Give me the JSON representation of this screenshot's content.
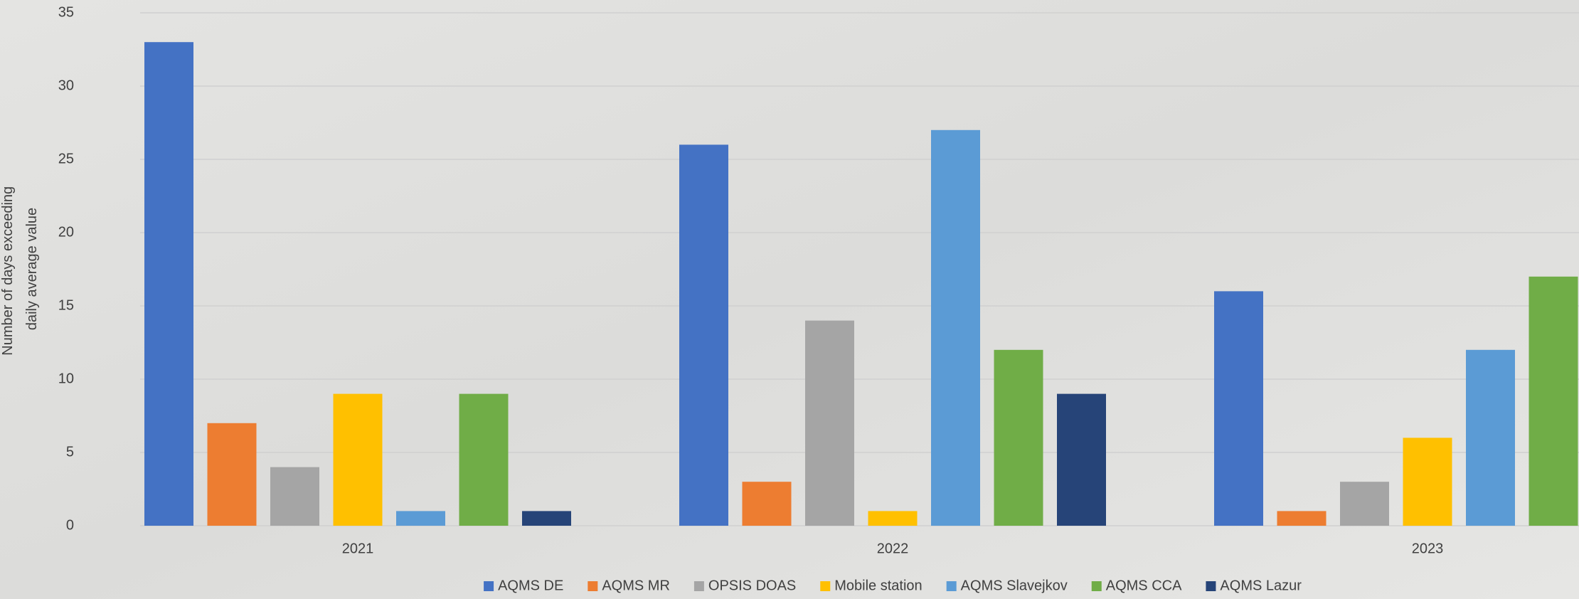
{
  "chart_data": {
    "type": "bar",
    "ylabel": [
      "Number of days exceeding",
      "daily average value"
    ],
    "categories": [
      "2021",
      "2022",
      "2023"
    ],
    "series": [
      {
        "name": "AQMS DE",
        "color": "#4472c4",
        "values": [
          33,
          26,
          16
        ]
      },
      {
        "name": "AQMS MR",
        "color": "#ed7d31",
        "values": [
          7,
          3,
          1
        ]
      },
      {
        "name": "OPSIS DOAS",
        "color": "#a5a5a5",
        "values": [
          4,
          14,
          3
        ]
      },
      {
        "name": "Mobile station",
        "color": "#ffc000",
        "values": [
          9,
          1,
          6
        ]
      },
      {
        "name": "AQMS Slavejkov",
        "color": "#5b9bd5",
        "values": [
          1,
          27,
          12
        ]
      },
      {
        "name": "AQMS CCA",
        "color": "#70ad47",
        "values": [
          9,
          12,
          17
        ]
      },
      {
        "name": "AQMS Lazur",
        "color": "#264478",
        "values": [
          1,
          9,
          null
        ]
      }
    ],
    "ylim": [
      0,
      35
    ],
    "yticks": [
      0,
      5,
      10,
      15,
      20,
      25,
      30,
      35
    ],
    "grid": true,
    "legend": "bottom"
  }
}
